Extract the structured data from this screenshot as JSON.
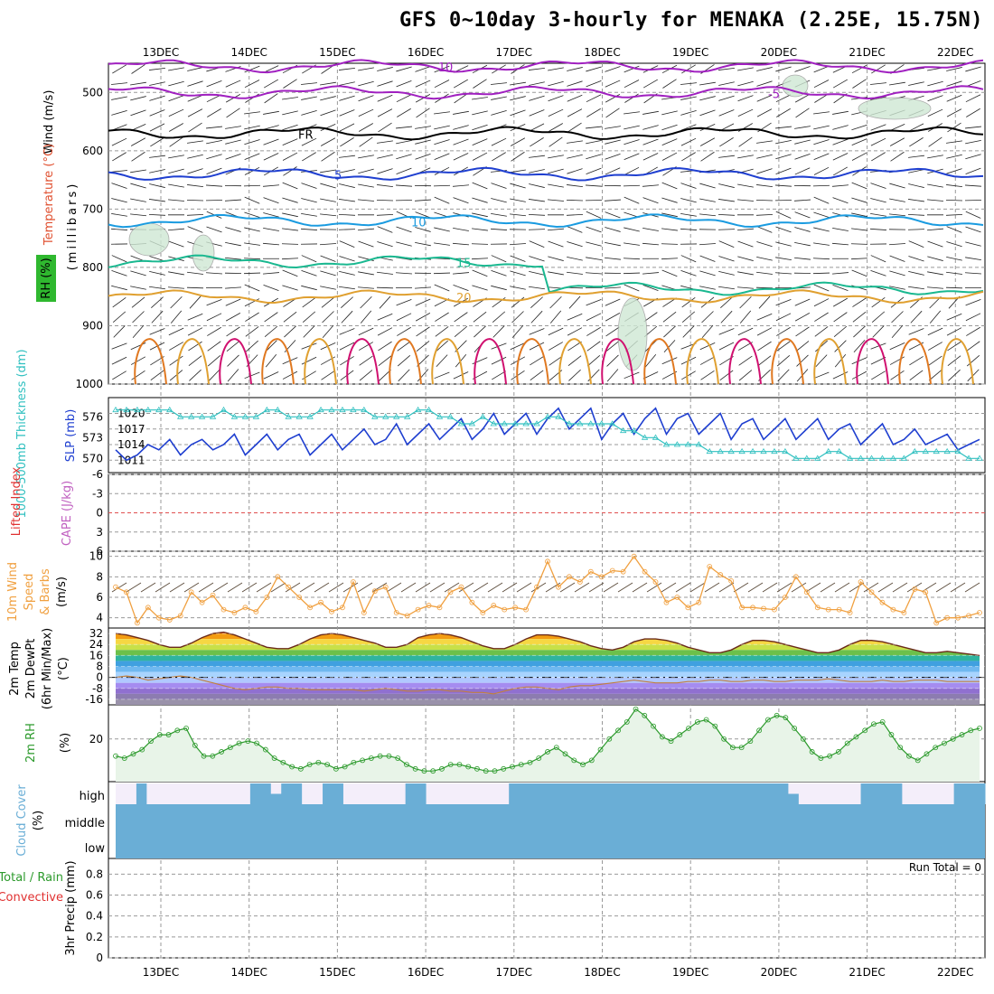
{
  "title": "GFS 0~10day 3-hourly for MENAKA (2.25E, 15.75N)",
  "dates": [
    "13DEC",
    "14DEC",
    "15DEC",
    "16DEC",
    "17DEC",
    "18DEC",
    "19DEC",
    "20DEC",
    "21DEC",
    "22DEC"
  ],
  "colors": {
    "temp_purple": "#a020c0",
    "temp_blue": "#1f3fd0",
    "temp_lightblue": "#1a9be0",
    "temp_green": "#1ab890",
    "temp_orange": "#e0a030",
    "temp_darkorange": "#e07820",
    "temp_magenta": "#d0106f",
    "slp": "#1f3fd0",
    "thickness": "#30c0c0",
    "wind10m": "#f0a040",
    "rh2m": "#2c9a2c",
    "cloud": "#6aaed6",
    "grid": "#999999"
  },
  "chart_data": [
    {
      "panel": "upper_air",
      "type": "contour",
      "ylabel_parts": [
        "Wind (m/s)",
        "Temperature (°C)",
        "RH (%)",
        "(millibars)"
      ],
      "yticks": [
        500,
        600,
        700,
        800,
        900,
        1000
      ],
      "ylim": [
        1000,
        450
      ],
      "contour_labels": [
        "-10",
        "-5",
        "FR",
        "5",
        "10",
        "15",
        "20"
      ],
      "isotherms": [
        {
          "label": "-10",
          "level_mb": 455
        },
        {
          "label": "-5",
          "level_mb": 500
        },
        {
          "label": "FR",
          "level_mb": 570
        },
        {
          "label": "5",
          "level_mb": 640
        },
        {
          "label": "10",
          "level_mb": 720
        },
        {
          "label": "15",
          "level_mb": 790
        },
        {
          "label": "20",
          "level_mb": 850
        }
      ]
    },
    {
      "panel": "thickness_slp",
      "type": "line",
      "left_label": "1000-500mb Thickness (dm)",
      "right_label": "SLP (mb)",
      "left_ticks": [
        570,
        573,
        576
      ],
      "right_ticks": [
        1011,
        1014,
        1017,
        1020
      ],
      "series": [
        {
          "name": "SLP (mb)",
          "values": [
            1013,
            1011,
            1012,
            1014,
            1013,
            1015,
            1012,
            1014,
            1015,
            1013,
            1014,
            1016,
            1012,
            1014,
            1016,
            1013,
            1015,
            1016,
            1012,
            1014,
            1016,
            1013,
            1015,
            1017,
            1014,
            1015,
            1018,
            1014,
            1016,
            1018,
            1015,
            1017,
            1019,
            1015,
            1017,
            1020,
            1016,
            1018,
            1020,
            1016,
            1019,
            1021,
            1017,
            1019,
            1021,
            1015,
            1018,
            1020,
            1016,
            1019,
            1021,
            1016,
            1019,
            1020,
            1016,
            1018,
            1020,
            1015,
            1018,
            1019,
            1015,
            1017,
            1019,
            1015,
            1017,
            1019,
            1015,
            1017,
            1018,
            1014,
            1016,
            1018,
            1014,
            1015,
            1017,
            1014,
            1015,
            1016,
            1013,
            1014,
            1015
          ]
        },
        {
          "name": "1000-500mb Thickness (dm)",
          "values": [
            577,
            577,
            577,
            577,
            577,
            577,
            576,
            576,
            576,
            576,
            577,
            576,
            576,
            576,
            577,
            577,
            576,
            576,
            576,
            577,
            577,
            577,
            577,
            577,
            576,
            576,
            576,
            576,
            577,
            577,
            576,
            576,
            575,
            575,
            576,
            575,
            575,
            575,
            575,
            575,
            576,
            576,
            575,
            575,
            575,
            575,
            575,
            574,
            574,
            573,
            573,
            572,
            572,
            572,
            572,
            571,
            571,
            571,
            571,
            571,
            571,
            571,
            571,
            570,
            570,
            570,
            571,
            571,
            570,
            570,
            570,
            570,
            570,
            570,
            571,
            571,
            571,
            571,
            571,
            570,
            570
          ]
        }
      ]
    },
    {
      "panel": "stability",
      "type": "line",
      "left_label": "Lifted Index",
      "right_label": "CAPE (J/kg)",
      "yticks": [
        "-6",
        "-3",
        "0",
        "3",
        "6"
      ],
      "ylim": [
        -6,
        6
      ],
      "lifted_index_zero_line": 0
    },
    {
      "panel": "wind10m",
      "type": "line",
      "ylabel_parts": [
        "10m Wind",
        "Speed",
        "& Barbs",
        "(m/s)"
      ],
      "yticks": [
        4,
        6,
        8,
        10
      ],
      "ylim": [
        3,
        10.5
      ],
      "series": [
        {
          "name": "10m Wind Speed",
          "values": [
            7.0,
            6.5,
            3.5,
            5.0,
            4.0,
            3.8,
            4.2,
            6.5,
            5.5,
            6.2,
            4.8,
            4.5,
            5.0,
            4.6,
            6.0,
            8.0,
            7.0,
            6.0,
            5.0,
            5.5,
            4.6,
            5.0,
            7.5,
            4.5,
            6.6,
            7.0,
            4.5,
            4.2,
            4.8,
            5.2,
            5.0,
            6.5,
            7.0,
            5.5,
            4.5,
            5.2,
            4.8,
            5.0,
            4.8,
            7.0,
            9.5,
            7.0,
            8.0,
            7.5,
            8.5,
            8.0,
            8.6,
            8.5,
            10.0,
            8.5,
            7.5,
            5.5,
            6.0,
            5.0,
            5.5,
            9.0,
            8.2,
            7.6,
            5.0,
            5.0,
            4.9,
            4.8,
            6.0,
            8.0,
            6.5,
            5.0,
            4.8,
            4.8,
            4.5,
            7.5,
            6.5,
            5.5,
            4.8,
            4.5,
            6.8,
            6.5,
            3.5,
            4.0,
            4.0,
            4.2,
            4.5
          ]
        }
      ]
    },
    {
      "panel": "temp2m",
      "type": "area",
      "ylabel_parts": [
        "2m Temp",
        "2m DewPt",
        "(6hr Min/Max)",
        "(°C)"
      ],
      "yticks": [
        -16,
        -8,
        0,
        8,
        16,
        24,
        32
      ],
      "ylim": [
        -20,
        36
      ],
      "series": [
        {
          "name": "2m Temp",
          "values": [
            32,
            31,
            29,
            27,
            24,
            22,
            22,
            25,
            29,
            32,
            33,
            31,
            28,
            25,
            22,
            21,
            21,
            24,
            28,
            31,
            32,
            31,
            29,
            27,
            25,
            22,
            22,
            24,
            29,
            31,
            32,
            31,
            29,
            26,
            23,
            21,
            21,
            24,
            28,
            31,
            31,
            30,
            28,
            26,
            23,
            21,
            20,
            22,
            26,
            28,
            28,
            27,
            25,
            22,
            20,
            18,
            18,
            20,
            24,
            27,
            27,
            26,
            24,
            22,
            20,
            18,
            18,
            20,
            24,
            27,
            27,
            26,
            24,
            22,
            20,
            18,
            18,
            19,
            18,
            17,
            16
          ]
        },
        {
          "name": "2m DewPt",
          "values": [
            0,
            1,
            0,
            -2,
            -1,
            0,
            1,
            0,
            -2,
            -4,
            -6,
            -8,
            -9,
            -8,
            -7,
            -7,
            -8,
            -8,
            -9,
            -9,
            -9,
            -9,
            -9,
            -10,
            -9,
            -8,
            -9,
            -10,
            -10,
            -9,
            -9,
            -10,
            -10,
            -11,
            -11,
            -12,
            -10,
            -8,
            -7,
            -7,
            -8,
            -9,
            -7,
            -6,
            -6,
            -5,
            -4,
            -3,
            -2,
            -3,
            -4,
            -4,
            -4,
            -3,
            -3,
            -2,
            -2,
            -3,
            -3,
            -2,
            -2,
            -3,
            -3,
            -2,
            -2,
            -2,
            -1,
            -2,
            -3,
            -3,
            -3,
            -2,
            -3,
            -3,
            -2,
            -2,
            -2,
            -3,
            -3,
            -3,
            -3
          ]
        }
      ]
    },
    {
      "panel": "rh2m",
      "type": "area",
      "ylabel_parts": [
        "2m RH",
        "(%)"
      ],
      "yticks": [
        20
      ],
      "ylim": [
        0,
        36
      ],
      "series": [
        {
          "name": "2m RH",
          "values": [
            12,
            11,
            13,
            15,
            19,
            22,
            22,
            24,
            25,
            17,
            12,
            12,
            14,
            16,
            18,
            19,
            18,
            15,
            11,
            9,
            7,
            6,
            8,
            9,
            8,
            6,
            7,
            9,
            10,
            11,
            12,
            12,
            11,
            8,
            6,
            5,
            5,
            6,
            8,
            8,
            7,
            6,
            5,
            5,
            6,
            7,
            8,
            9,
            11,
            14,
            16,
            13,
            10,
            8,
            10,
            15,
            20,
            24,
            28,
            34,
            31,
            26,
            21,
            19,
            22,
            25,
            28,
            29,
            26,
            20,
            16,
            16,
            19,
            24,
            29,
            31,
            30,
            25,
            20,
            14,
            11,
            12,
            14,
            18,
            21,
            24,
            27,
            28,
            22,
            16,
            12,
            10,
            13,
            16,
            18,
            20,
            22,
            24,
            25
          ]
        }
      ]
    },
    {
      "panel": "cloud_cover",
      "type": "bar",
      "ylabel_parts": [
        "Cloud Cover",
        "(%)"
      ],
      "categories_axis": [
        "high",
        "middle",
        "low"
      ],
      "series": [
        {
          "name": "high cloud",
          "values": [
            0,
            0,
            100,
            0,
            0,
            0,
            0,
            0,
            0,
            0,
            0,
            0,
            0,
            100,
            100,
            50,
            100,
            100,
            0,
            0,
            100,
            100,
            0,
            0,
            0,
            0,
            0,
            0,
            100,
            100,
            0,
            0,
            0,
            0,
            0,
            0,
            0,
            0,
            100,
            100,
            100,
            100,
            100,
            100,
            100,
            100,
            100,
            100,
            100,
            100,
            100,
            100,
            100,
            100,
            100,
            100,
            100,
            100,
            100,
            100,
            100,
            100,
            100,
            100,
            100,
            50,
            0,
            0,
            0,
            0,
            0,
            0,
            100,
            100,
            100,
            100,
            0,
            0,
            0,
            0,
            0,
            100,
            100,
            100
          ]
        }
      ]
    },
    {
      "panel": "precip",
      "type": "bar",
      "ylabel_parts": [
        "3hr Precip (mm)",
        "Total / Rain",
        "Convective"
      ],
      "yticks": [
        0,
        0.2,
        0.4,
        0.6,
        0.8
      ],
      "ylim": [
        0,
        0.95
      ],
      "run_total_label": "Run Total = 0",
      "values": []
    }
  ]
}
